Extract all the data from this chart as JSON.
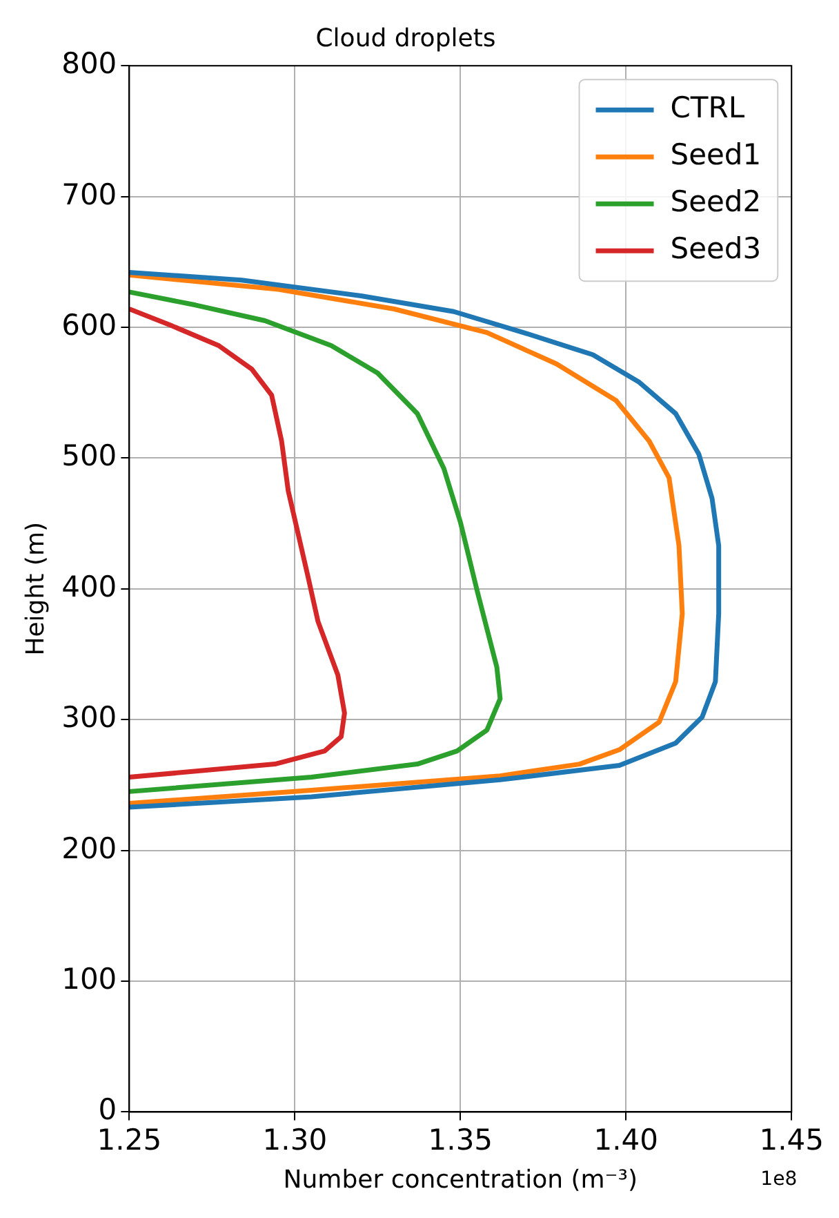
{
  "chart_data": {
    "type": "line",
    "title": "Cloud droplets",
    "xlabel": "Number concentration (m⁻³)",
    "ylabel": "Height (m)",
    "xlim": [
      1.25,
      1.45
    ],
    "xticks": [
      1.25,
      {
        "value": 1.3,
        "label": "1.30"
      },
      1.35,
      {
        "value": 1.4,
        "label": "1.40"
      },
      1.45
    ],
    "ylim": [
      0,
      800
    ],
    "yticks": [
      0,
      100,
      200,
      300,
      400,
      500,
      600,
      700,
      800
    ],
    "grid": true,
    "legend": "top right",
    "annotations": [
      "1e8"
    ],
    "series": [
      {
        "name": "CTRL",
        "color": "#1f77b4",
        "x": [
          1.25,
          1.305,
          1.362,
          1.398,
          1.415,
          1.423,
          1.427,
          1.428,
          1.428,
          1.426,
          1.422,
          1.415,
          1.404,
          1.39,
          1.369,
          1.348,
          1.32,
          1.284,
          1.25
        ],
        "values": [
          233,
          241,
          254,
          265,
          282,
          302,
          329,
          381,
          433,
          469,
          503,
          534,
          558,
          579,
          596,
          612,
          624,
          636,
          642
        ]
      },
      {
        "name": "Seed1",
        "color": "#ff7f0e",
        "x": [
          1.25,
          1.305,
          1.362,
          1.386,
          1.398,
          1.41,
          1.415,
          1.417,
          1.416,
          1.413,
          1.407,
          1.397,
          1.379,
          1.358,
          1.33,
          1.295,
          1.25
        ],
        "values": [
          236,
          246,
          257,
          266,
          277,
          298,
          329,
          381,
          433,
          485,
          513,
          544,
          572,
          596,
          614,
          629,
          640
        ]
      },
      {
        "name": "Seed2",
        "color": "#2ca02c",
        "x": [
          1.25,
          1.305,
          1.337,
          1.349,
          1.358,
          1.362,
          1.361,
          1.355,
          1.35,
          1.345,
          1.337,
          1.325,
          1.311,
          1.291,
          1.27,
          1.25
        ],
        "values": [
          245,
          256,
          266,
          276,
          292,
          316,
          340,
          399,
          451,
          492,
          534,
          565,
          586,
          605,
          617,
          627
        ]
      },
      {
        "name": "Seed3",
        "color": "#d62728",
        "x": [
          1.25,
          1.294,
          1.309,
          1.314,
          1.315,
          1.313,
          1.307,
          1.304,
          1.298,
          1.296,
          1.293,
          1.287,
          1.277,
          1.263,
          1.25
        ],
        "values": [
          256,
          266,
          276,
          287,
          305,
          334,
          375,
          409,
          475,
          513,
          548,
          568,
          586,
          601,
          614
        ]
      }
    ]
  }
}
